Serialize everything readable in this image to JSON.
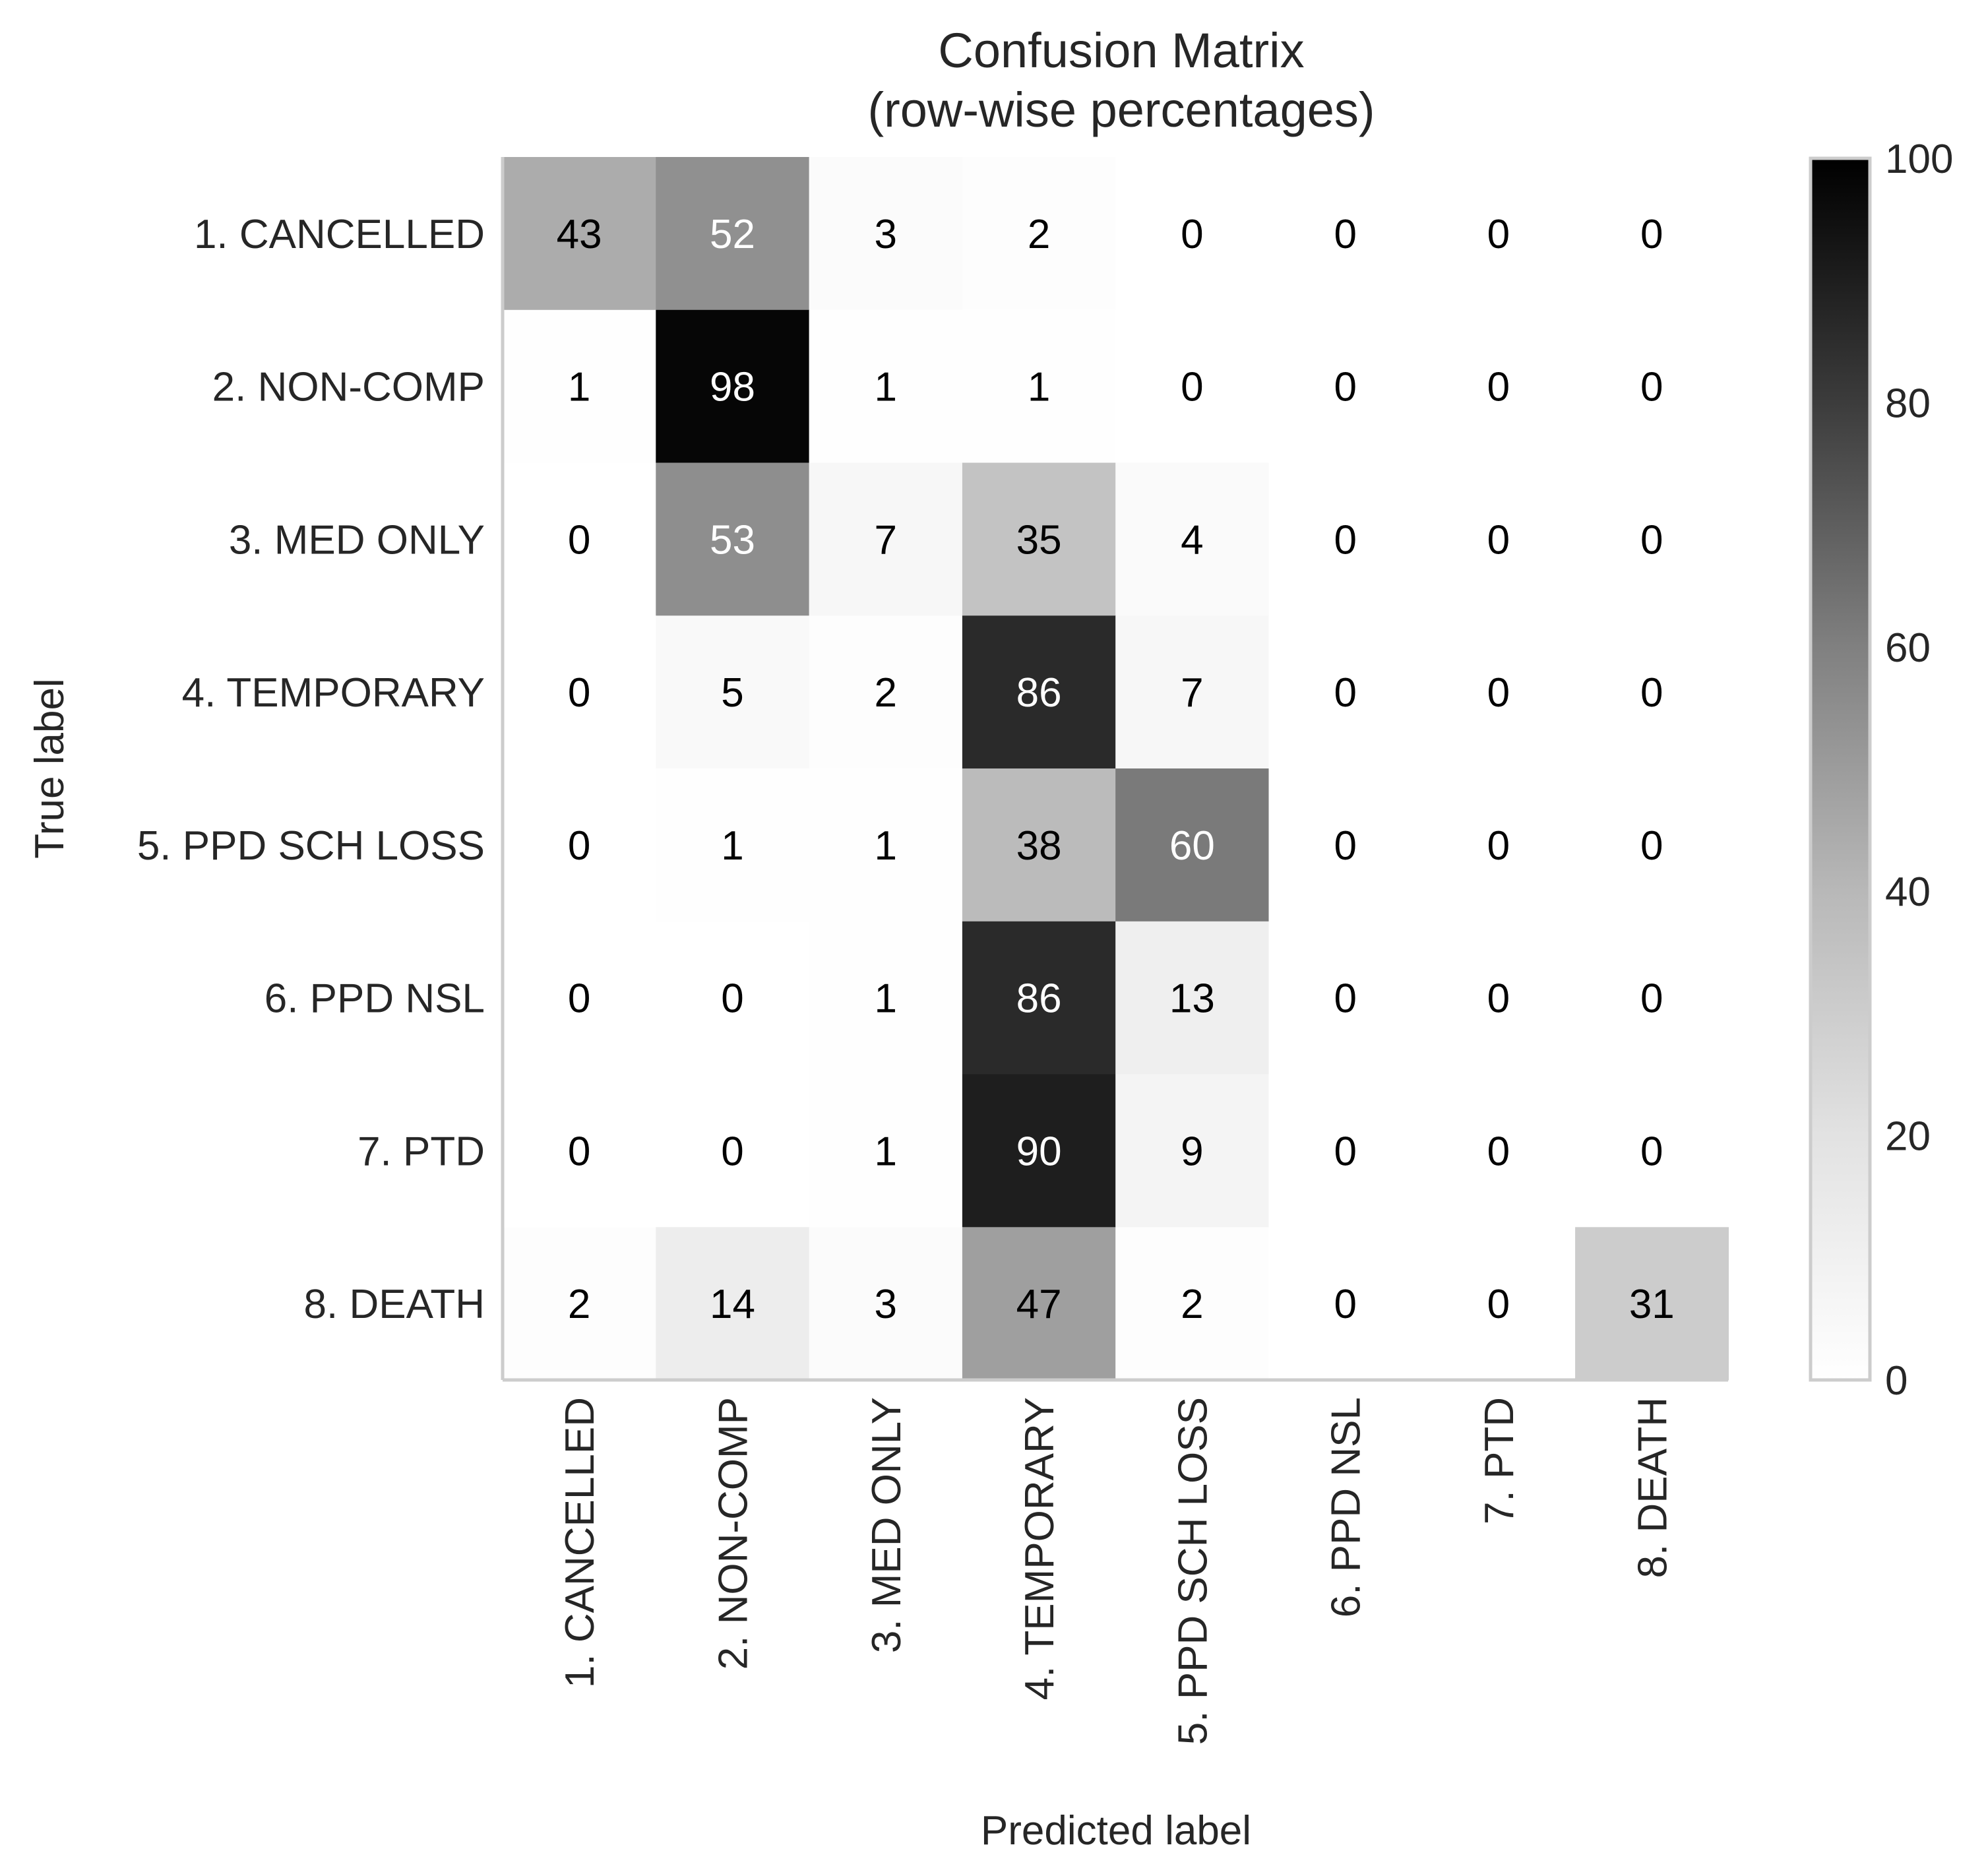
{
  "chart_data": {
    "type": "heatmap",
    "title": "Confusion Matrix",
    "subtitle": "(row-wise percentages)",
    "xlabel": "Predicted label",
    "ylabel": "True label",
    "categories": [
      "1. CANCELLED",
      "2. NON-COMP",
      "3. MED ONLY",
      "4. TEMPORARY",
      "5. PPD SCH LOSS",
      "6. PPD NSL",
      "7. PTD",
      "8. DEATH"
    ],
    "values": [
      [
        43,
        52,
        3,
        2,
        0,
        0,
        0,
        0
      ],
      [
        1,
        98,
        1,
        1,
        0,
        0,
        0,
        0
      ],
      [
        0,
        53,
        7,
        35,
        4,
        0,
        0,
        0
      ],
      [
        0,
        5,
        2,
        86,
        7,
        0,
        0,
        0
      ],
      [
        0,
        1,
        1,
        38,
        60,
        0,
        0,
        0
      ],
      [
        0,
        0,
        1,
        86,
        13,
        0,
        0,
        0
      ],
      [
        0,
        0,
        1,
        90,
        9,
        0,
        0,
        0
      ],
      [
        2,
        14,
        3,
        47,
        2,
        0,
        0,
        31
      ]
    ],
    "colorbar": {
      "min": 0,
      "max": 100,
      "ticks": [
        0,
        20,
        40,
        60,
        80,
        100
      ],
      "colormap": "Greys"
    },
    "grid": false
  },
  "colors": {
    "background": "#ffffff",
    "text": "#262626",
    "spine": "#cccccc",
    "cell_low": "#ffffff",
    "cell_high": "#000000",
    "annotation_dark": "#000000",
    "annotation_light": "#ffffff"
  }
}
